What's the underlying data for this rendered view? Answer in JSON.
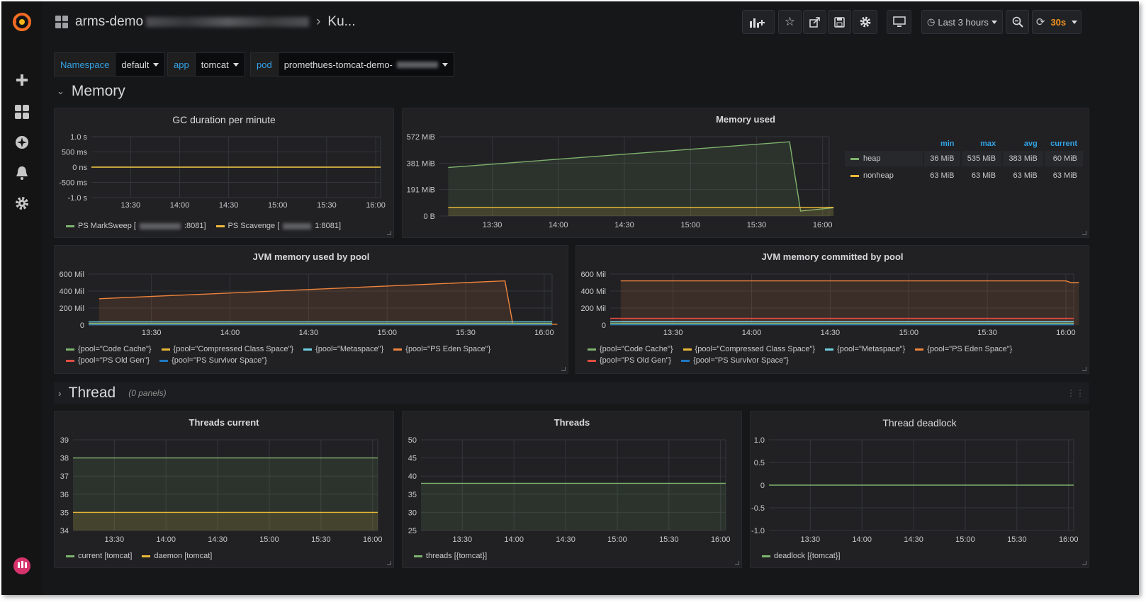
{
  "topbar": {
    "dashboard_title": "arms-demo",
    "dashboard_title_tail": "Ku...",
    "time_range": "Last 3 hours",
    "refresh_interval": "30s"
  },
  "variables": {
    "namespace_label": "Namespace",
    "namespace_value": "default",
    "app_label": "app",
    "app_value": "tomcat",
    "pod_label": "pod",
    "pod_value": "promethues-tomcat-demo-"
  },
  "rows": {
    "memory": "Memory",
    "thread": "Thread",
    "thread_sub": "(0 panels)"
  },
  "panels": {
    "gc": {
      "title": "GC duration per minute",
      "legend": [
        {
          "label": "PS MarkSweep [",
          "suffix": ":8081]",
          "color": "#7eb26d"
        },
        {
          "label": "PS Scavenge [",
          "suffix": "1:8081]",
          "color": "#eab839"
        }
      ]
    },
    "memused": {
      "title": "Memory used",
      "headers": [
        "min",
        "max",
        "avg",
        "current"
      ],
      "rows": [
        {
          "name": "heap",
          "color": "#7eb26d",
          "min": "36 MiB",
          "max": "535 MiB",
          "avg": "383 MiB",
          "current": "60 MiB"
        },
        {
          "name": "nonheap",
          "color": "#eab839",
          "min": "63 MiB",
          "max": "63 MiB",
          "avg": "63 MiB",
          "current": "63 MiB"
        }
      ]
    },
    "jvmused": {
      "title": "JVM memory used by pool"
    },
    "jvmcommitted": {
      "title": "JVM memory committed by pool"
    },
    "pool_legend": [
      {
        "label": "{pool=\"Code Cache\"}",
        "color": "#7eb26d"
      },
      {
        "label": "{pool=\"Compressed Class Space\"}",
        "color": "#eab839"
      },
      {
        "label": "{pool=\"Metaspace\"}",
        "color": "#6ed0e0"
      },
      {
        "label": "{pool=\"PS Eden Space\"}",
        "color": "#ef843c"
      },
      {
        "label": "{pool=\"PS Old Gen\"}",
        "color": "#e24d42"
      },
      {
        "label": "{pool=\"PS Survivor Space\"}",
        "color": "#1f78c1"
      }
    ],
    "threads_current": {
      "title": "Threads current",
      "legend": [
        {
          "label": "current [tomcat]",
          "color": "#7eb26d"
        },
        {
          "label": "daemon [tomcat]",
          "color": "#eab839"
        }
      ]
    },
    "threads": {
      "title": "Threads",
      "legend": [
        {
          "label": "threads [{tomcat}]",
          "color": "#7eb26d"
        }
      ]
    },
    "deadlock": {
      "title": "Thread deadlock",
      "legend": [
        {
          "label": "deadlock [{tomcat}]",
          "color": "#7eb26d"
        }
      ]
    }
  },
  "chart_data": [
    {
      "id": "gc",
      "type": "line",
      "title": "GC duration per minute",
      "x": [
        "13:30",
        "14:00",
        "14:30",
        "15:00",
        "15:30",
        "16:00"
      ],
      "yticks": [
        "1.0 s",
        "500 ms",
        "0 ns",
        "-500 ms",
        "-1.0 s"
      ],
      "ylim": [
        -1.0,
        1.0
      ],
      "series": [
        {
          "name": "PS MarkSweep",
          "start": 0,
          "end": 0
        },
        {
          "name": "PS Scavenge",
          "start": 0,
          "end": 0
        }
      ]
    },
    {
      "id": "memused",
      "type": "area",
      "title": "Memory used",
      "x": [
        "13:30",
        "14:00",
        "14:30",
        "15:00",
        "15:30",
        "16:00"
      ],
      "yticks": [
        "572 MiB",
        "381 MiB",
        "191 MiB",
        "0 B"
      ],
      "ylim": [
        0,
        572
      ],
      "series": [
        {
          "name": "heap",
          "points": [
            [
              13.1,
              350
            ],
            [
              15.45,
              535
            ],
            [
              15.5,
              36
            ],
            [
              16.05,
              60
            ]
          ]
        },
        {
          "name": "nonheap",
          "points": [
            [
              13.1,
              63
            ],
            [
              16.05,
              63
            ]
          ]
        }
      ]
    },
    {
      "id": "jvmused",
      "type": "area",
      "title": "JVM memory used by pool",
      "x": [
        "13:30",
        "14:00",
        "14:30",
        "15:00",
        "15:30",
        "16:00"
      ],
      "yticks": [
        "600 Mil",
        "400 Mil",
        "200 Mil",
        "0"
      ],
      "ylim": [
        0,
        600
      ],
      "series": [
        {
          "name": "PS Eden Space",
          "points": [
            [
              13.1,
              310
            ],
            [
              15.45,
              520
            ],
            [
              15.48,
              10
            ],
            [
              16.05,
              10
            ]
          ]
        },
        {
          "name": "PS Old Gen",
          "value": 15
        },
        {
          "name": "Metaspace",
          "value": 38
        },
        {
          "name": "Code Cache",
          "value": 20
        },
        {
          "name": "Compressed Class Space",
          "value": 5
        },
        {
          "name": "PS Survivor Space",
          "value": 3
        }
      ]
    },
    {
      "id": "jvmcommitted",
      "type": "area",
      "title": "JVM memory committed by pool",
      "x": [
        "13:30",
        "14:00",
        "14:30",
        "15:00",
        "15:30",
        "16:00"
      ],
      "yticks": [
        "600 Mil",
        "400 Mil",
        "200 Mil",
        "0"
      ],
      "ylim": [
        0,
        600
      ],
      "series": [
        {
          "name": "PS Eden Space",
          "points": [
            [
              13.1,
              520
            ],
            [
              15.6,
              520
            ],
            [
              15.62,
              500
            ],
            [
              16.05,
              500
            ]
          ]
        },
        {
          "name": "PS Old Gen",
          "value": 80
        },
        {
          "name": "Metaspace",
          "value": 42
        },
        {
          "name": "Code Cache",
          "value": 22
        },
        {
          "name": "Compressed Class Space",
          "value": 6
        },
        {
          "name": "PS Survivor Space",
          "value": 4
        }
      ]
    },
    {
      "id": "threads_current",
      "type": "area",
      "title": "Threads current",
      "x": [
        "13:30",
        "14:00",
        "14:30",
        "15:00",
        "15:30",
        "16:00"
      ],
      "yticks": [
        "39",
        "38",
        "37",
        "36",
        "35",
        "34"
      ],
      "ylim": [
        34,
        39
      ],
      "series": [
        {
          "name": "current [tomcat]",
          "value": 38
        },
        {
          "name": "daemon [tomcat]",
          "value": 35
        }
      ]
    },
    {
      "id": "threads",
      "type": "area",
      "title": "Threads",
      "x": [
        "13:30",
        "14:00",
        "14:30",
        "15:00",
        "15:30",
        "16:00"
      ],
      "yticks": [
        "50",
        "45",
        "40",
        "35",
        "30",
        "25"
      ],
      "ylim": [
        25,
        50
      ],
      "series": [
        {
          "name": "threads [{tomcat}]",
          "value": 38
        }
      ]
    },
    {
      "id": "deadlock",
      "type": "line",
      "title": "Thread deadlock",
      "x": [
        "13:30",
        "14:00",
        "14:30",
        "15:00",
        "15:30",
        "16:00"
      ],
      "yticks": [
        "1.0",
        "0.5",
        "0",
        "-0.5",
        "-1.0"
      ],
      "ylim": [
        -1.0,
        1.0
      ],
      "series": [
        {
          "name": "deadlock [{tomcat}]",
          "value": 0
        }
      ]
    }
  ]
}
